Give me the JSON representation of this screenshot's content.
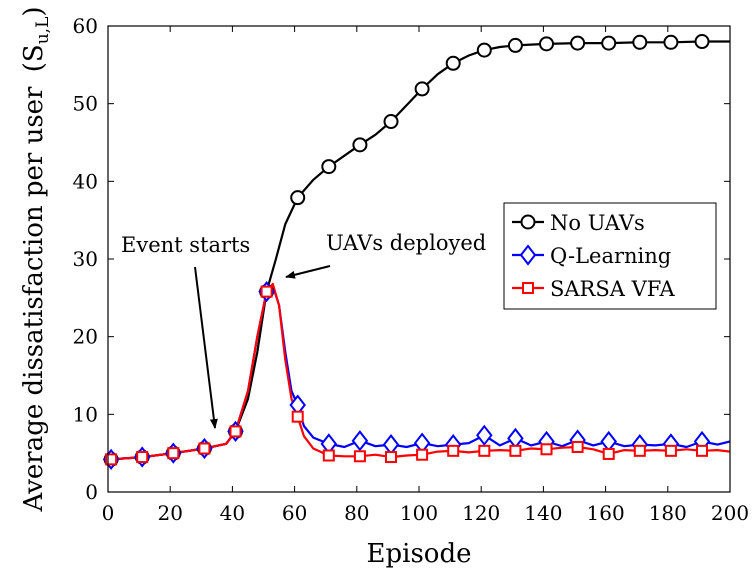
{
  "chart_data": {
    "type": "line",
    "xlabel": "Episode",
    "ylabel": "Average dissatisfaction per user",
    "ylabel_symbol": "(S",
    "ylabel_sub": "u,L",
    "ylabel_close": ")",
    "xlim": [
      0,
      200
    ],
    "ylim": [
      0,
      60
    ],
    "xticks": [
      0,
      20,
      40,
      60,
      80,
      100,
      120,
      140,
      160,
      180,
      200
    ],
    "yticks": [
      0,
      10,
      20,
      30,
      40,
      50,
      60
    ],
    "grid": false,
    "legend_position": "center-right",
    "annotations": [
      {
        "text": "Event starts",
        "arrow_to": [
          35,
          6.2
        ]
      },
      {
        "text": "UAVs deployed",
        "arrow_to": [
          53,
          27.5
        ]
      }
    ],
    "series": [
      {
        "name": "No UAVs",
        "color": "#000000",
        "marker": "circle",
        "line": [
          [
            1,
            4.2
          ],
          [
            11,
            4.5
          ],
          [
            21,
            5.0
          ],
          [
            31,
            5.6
          ],
          [
            38,
            6.2
          ],
          [
            41,
            7.8
          ],
          [
            45,
            12
          ],
          [
            48,
            18
          ],
          [
            51,
            25.8
          ],
          [
            54,
            30
          ],
          [
            57,
            34.5
          ],
          [
            61,
            37.9
          ],
          [
            66,
            40.2
          ],
          [
            71,
            41.9
          ],
          [
            76,
            43.3
          ],
          [
            81,
            44.7
          ],
          [
            86,
            46.0
          ],
          [
            91,
            47.7
          ],
          [
            96,
            49.8
          ],
          [
            101,
            51.9
          ],
          [
            106,
            53.8
          ],
          [
            111,
            55.2
          ],
          [
            116,
            56.2
          ],
          [
            121,
            56.9
          ],
          [
            126,
            57.3
          ],
          [
            131,
            57.5
          ],
          [
            141,
            57.7
          ],
          [
            151,
            57.8
          ],
          [
            161,
            57.8
          ],
          [
            171,
            57.9
          ],
          [
            181,
            57.9
          ],
          [
            191,
            58.0
          ],
          [
            200,
            58.0
          ]
        ],
        "markers": [
          [
            1,
            4.2
          ],
          [
            11,
            4.5
          ],
          [
            21,
            5.0
          ],
          [
            31,
            5.6
          ],
          [
            41,
            7.8
          ],
          [
            51,
            25.8
          ],
          [
            61,
            37.9
          ],
          [
            71,
            41.9
          ],
          [
            81,
            44.7
          ],
          [
            91,
            47.7
          ],
          [
            101,
            51.9
          ],
          [
            111,
            55.2
          ],
          [
            121,
            56.9
          ],
          [
            131,
            57.5
          ],
          [
            141,
            57.7
          ],
          [
            151,
            57.8
          ],
          [
            161,
            57.8
          ],
          [
            171,
            57.9
          ],
          [
            181,
            57.9
          ],
          [
            191,
            58.0
          ]
        ]
      },
      {
        "name": "Q-Learning",
        "color": "#0000ff",
        "marker": "diamond",
        "line": [
          [
            1,
            4.2
          ],
          [
            11,
            4.5
          ],
          [
            21,
            5.0
          ],
          [
            31,
            5.6
          ],
          [
            38,
            6.2
          ],
          [
            41,
            7.8
          ],
          [
            45,
            13
          ],
          [
            48,
            20
          ],
          [
            51,
            25.8
          ],
          [
            53,
            26.6
          ],
          [
            55,
            24
          ],
          [
            57,
            18
          ],
          [
            59,
            13
          ],
          [
            61,
            11.2
          ],
          [
            63,
            8.5
          ],
          [
            66,
            7.0
          ],
          [
            71,
            6.2
          ],
          [
            76,
            5.8
          ],
          [
            81,
            6.6
          ],
          [
            86,
            5.9
          ],
          [
            91,
            6.1
          ],
          [
            96,
            5.8
          ],
          [
            101,
            6.3
          ],
          [
            106,
            5.9
          ],
          [
            111,
            6.1
          ],
          [
            116,
            6.3
          ],
          [
            121,
            7.3
          ],
          [
            126,
            6.0
          ],
          [
            131,
            6.9
          ],
          [
            136,
            6.0
          ],
          [
            141,
            6.5
          ],
          [
            146,
            5.9
          ],
          [
            151,
            6.7
          ],
          [
            156,
            6.0
          ],
          [
            161,
            6.5
          ],
          [
            166,
            5.9
          ],
          [
            171,
            6.1
          ],
          [
            176,
            6.0
          ],
          [
            181,
            6.2
          ],
          [
            186,
            5.8
          ],
          [
            191,
            6.5
          ],
          [
            196,
            6.1
          ],
          [
            200,
            6.5
          ]
        ],
        "markers": [
          [
            1,
            4.2
          ],
          [
            11,
            4.5
          ],
          [
            21,
            5.0
          ],
          [
            31,
            5.6
          ],
          [
            41,
            7.8
          ],
          [
            51,
            25.8
          ],
          [
            61,
            11.2
          ],
          [
            71,
            6.2
          ],
          [
            81,
            6.6
          ],
          [
            91,
            6.1
          ],
          [
            101,
            6.3
          ],
          [
            111,
            6.1
          ],
          [
            121,
            7.3
          ],
          [
            131,
            6.9
          ],
          [
            141,
            6.5
          ],
          [
            151,
            6.7
          ],
          [
            161,
            6.5
          ],
          [
            171,
            6.1
          ],
          [
            181,
            6.2
          ],
          [
            191,
            6.5
          ]
        ]
      },
      {
        "name": "SARSA VFA",
        "color": "#ff0000",
        "marker": "square",
        "line": [
          [
            1,
            4.2
          ],
          [
            11,
            4.5
          ],
          [
            21,
            5.0
          ],
          [
            31,
            5.6
          ],
          [
            38,
            6.2
          ],
          [
            41,
            7.8
          ],
          [
            45,
            13
          ],
          [
            48,
            20
          ],
          [
            51,
            25.8
          ],
          [
            53,
            26.8
          ],
          [
            55,
            24
          ],
          [
            57,
            17
          ],
          [
            59,
            12
          ],
          [
            61,
            9.7
          ],
          [
            63,
            7.2
          ],
          [
            66,
            5.6
          ],
          [
            71,
            4.7
          ],
          [
            76,
            4.6
          ],
          [
            81,
            4.6
          ],
          [
            86,
            4.8
          ],
          [
            91,
            4.5
          ],
          [
            96,
            4.7
          ],
          [
            101,
            4.8
          ],
          [
            106,
            5.2
          ],
          [
            111,
            5.3
          ],
          [
            116,
            5.1
          ],
          [
            121,
            5.3
          ],
          [
            126,
            5.4
          ],
          [
            131,
            5.3
          ],
          [
            136,
            5.6
          ],
          [
            141,
            5.5
          ],
          [
            146,
            5.7
          ],
          [
            151,
            5.8
          ],
          [
            156,
            5.5
          ],
          [
            161,
            4.9
          ],
          [
            166,
            5.4
          ],
          [
            171,
            5.3
          ],
          [
            176,
            5.4
          ],
          [
            181,
            5.3
          ],
          [
            186,
            5.5
          ],
          [
            191,
            5.3
          ],
          [
            196,
            5.4
          ],
          [
            200,
            5.2
          ]
        ],
        "markers": [
          [
            1,
            4.2
          ],
          [
            11,
            4.5
          ],
          [
            21,
            5.0
          ],
          [
            31,
            5.6
          ],
          [
            41,
            7.8
          ],
          [
            51,
            25.8
          ],
          [
            61,
            9.7
          ],
          [
            71,
            4.7
          ],
          [
            81,
            4.6
          ],
          [
            91,
            4.5
          ],
          [
            101,
            4.8
          ],
          [
            111,
            5.3
          ],
          [
            121,
            5.3
          ],
          [
            131,
            5.3
          ],
          [
            141,
            5.5
          ],
          [
            151,
            5.8
          ],
          [
            161,
            4.9
          ],
          [
            171,
            5.3
          ],
          [
            181,
            5.3
          ],
          [
            191,
            5.3
          ]
        ]
      }
    ]
  }
}
